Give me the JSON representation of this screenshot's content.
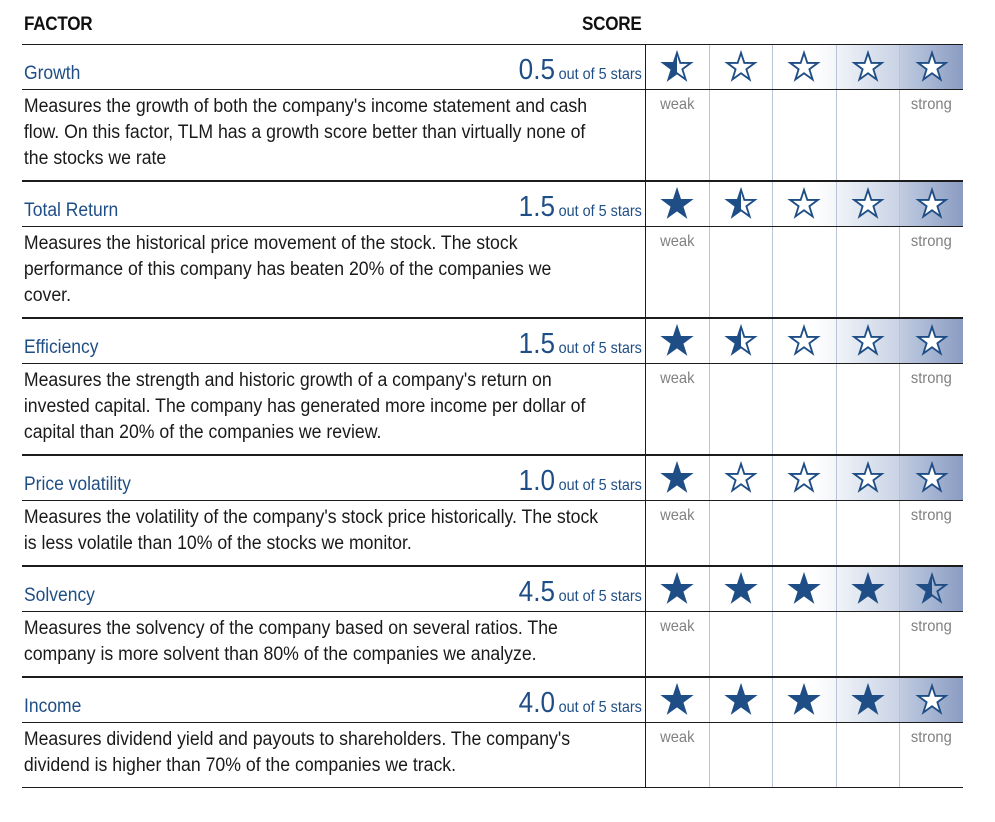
{
  "header": {
    "factor_label": "FACTOR",
    "score_label": "SCORE"
  },
  "colors": {
    "accent": "#1f4e86",
    "star": "#1f4e86",
    "rule": "#1c1c1c",
    "muted": "#808080"
  },
  "scale": {
    "weak_label": "weak",
    "strong_label": "strong"
  },
  "factors": [
    {
      "name": "Growth",
      "score": "0.5",
      "suffix": "out of 5 stars",
      "stars": [
        "half",
        "empty",
        "empty",
        "empty",
        "empty"
      ],
      "description": "Measures the growth of both the company's income statement and cash flow. On this factor, TLM has a growth score better than virtually none of the stocks we rate"
    },
    {
      "name": "Total Return",
      "score": "1.5",
      "suffix": "out of 5 stars",
      "stars": [
        "full",
        "half",
        "empty",
        "empty",
        "empty"
      ],
      "description": "Measures the historical price movement of the stock. The stock performance of this company has beaten 20% of the companies we cover."
    },
    {
      "name": "Efficiency",
      "score": "1.5",
      "suffix": "out of 5 stars",
      "stars": [
        "full",
        "half",
        "empty",
        "empty",
        "empty"
      ],
      "description": "Measures the strength and historic growth of a company's return on invested capital. The company has generated more income per dollar of capital than 20% of the companies we review."
    },
    {
      "name": "Price volatility",
      "score": "1.0",
      "suffix": "out of 5 stars",
      "stars": [
        "full",
        "empty",
        "empty",
        "empty",
        "empty"
      ],
      "description": "Measures the volatility of the company's stock price historically. The stock is less volatile than 10% of the stocks we monitor."
    },
    {
      "name": "Solvency",
      "score": "4.5",
      "suffix": "out of 5 stars",
      "stars": [
        "full",
        "full",
        "full",
        "full",
        "half"
      ],
      "description": "Measures the solvency of the company based on several ratios. The company is more solvent than 80% of the companies we analyze."
    },
    {
      "name": "Income",
      "score": "4.0",
      "suffix": "out of 5 stars",
      "stars": [
        "full",
        "full",
        "full",
        "full",
        "empty"
      ],
      "description": "Measures dividend yield and payouts to shareholders. The company's dividend is higher than 70% of the companies we track."
    }
  ]
}
